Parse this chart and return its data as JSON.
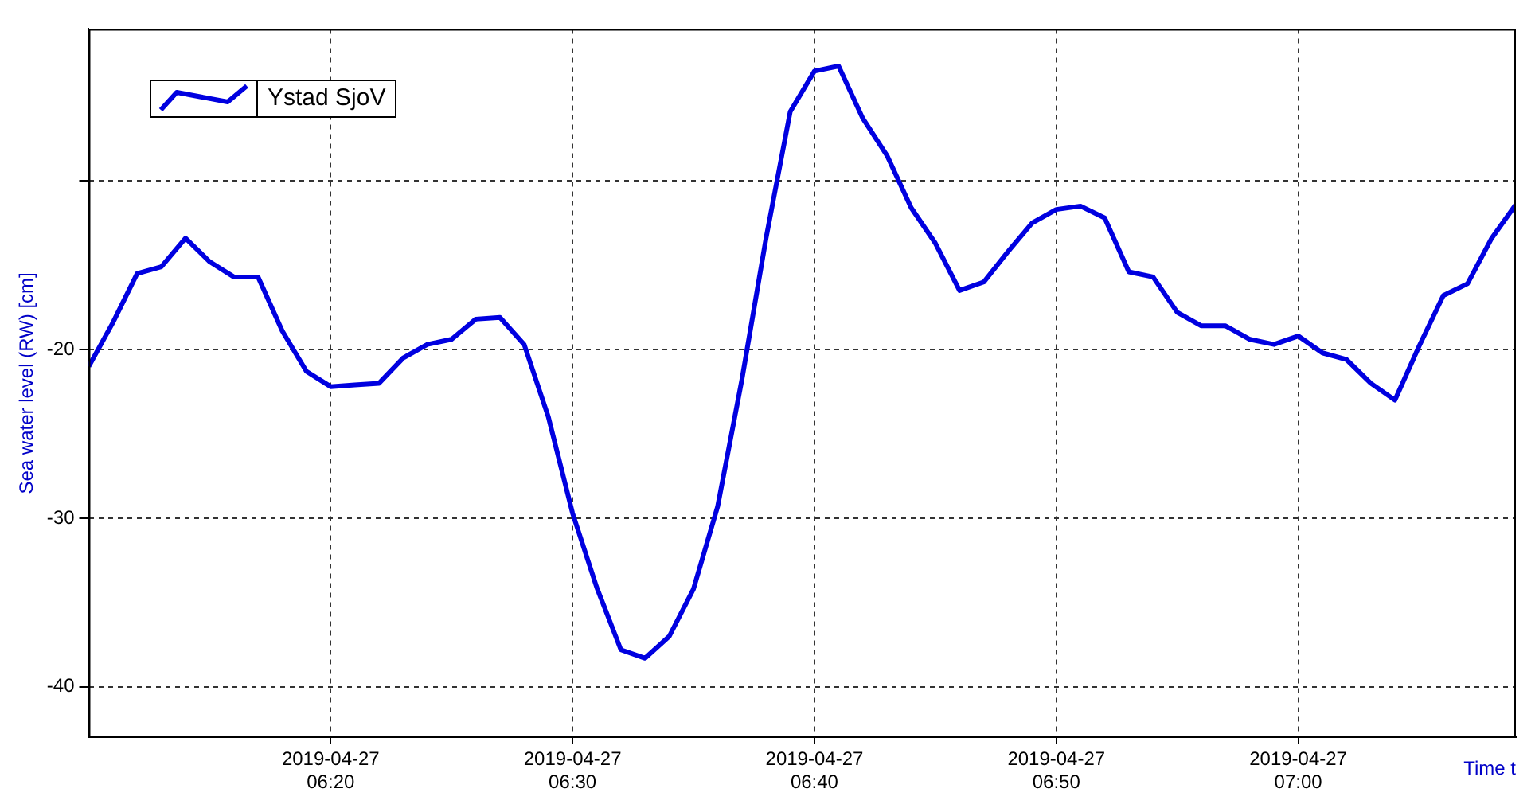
{
  "chart_data": {
    "type": "line",
    "ylabel": "Sea water level (RW) [cm]",
    "xlabel": "Time t",
    "x": [
      "2019-04-27T06:10",
      "2019-04-27T06:11",
      "2019-04-27T06:12",
      "2019-04-27T06:13",
      "2019-04-27T06:14",
      "2019-04-27T06:15",
      "2019-04-27T06:16",
      "2019-04-27T06:17",
      "2019-04-27T06:18",
      "2019-04-27T06:19",
      "2019-04-27T06:20",
      "2019-04-27T06:21",
      "2019-04-27T06:22",
      "2019-04-27T06:23",
      "2019-04-27T06:24",
      "2019-04-27T06:25",
      "2019-04-27T06:26",
      "2019-04-27T06:27",
      "2019-04-27T06:28",
      "2019-04-27T06:29",
      "2019-04-27T06:30",
      "2019-04-27T06:31",
      "2019-04-27T06:32",
      "2019-04-27T06:33",
      "2019-04-27T06:34",
      "2019-04-27T06:35",
      "2019-04-27T06:36",
      "2019-04-27T06:37",
      "2019-04-27T06:38",
      "2019-04-27T06:39",
      "2019-04-27T06:40",
      "2019-04-27T06:41",
      "2019-04-27T06:42",
      "2019-04-27T06:43",
      "2019-04-27T06:44",
      "2019-04-27T06:45",
      "2019-04-27T06:46",
      "2019-04-27T06:47",
      "2019-04-27T06:48",
      "2019-04-27T06:49",
      "2019-04-27T06:50",
      "2019-04-27T06:51",
      "2019-04-27T06:52",
      "2019-04-27T06:53",
      "2019-04-27T06:54",
      "2019-04-27T06:55",
      "2019-04-27T06:56",
      "2019-04-27T06:57",
      "2019-04-27T06:58",
      "2019-04-27T06:59",
      "2019-04-27T07:00",
      "2019-04-27T07:01",
      "2019-04-27T07:02",
      "2019-04-27T07:03",
      "2019-04-27T07:04",
      "2019-04-27T07:05",
      "2019-04-27T07:06",
      "2019-04-27T07:07",
      "2019-04-27T07:08",
      "2019-04-27T07:09"
    ],
    "series": [
      {
        "name": "Ystad SjoV",
        "color": "#0000e0",
        "values": [
          -21.0,
          -18.4,
          -15.5,
          -15.1,
          -13.4,
          -14.8,
          -15.7,
          -15.7,
          -18.9,
          -21.3,
          -22.2,
          -22.1,
          -22.0,
          -20.5,
          -19.7,
          -19.4,
          -18.2,
          -18.1,
          -19.7,
          -24.0,
          -29.7,
          -34.1,
          -37.8,
          -38.3,
          -37.0,
          -34.2,
          -29.3,
          -21.8,
          -13.4,
          -5.9,
          -3.5,
          -3.2,
          -6.3,
          -8.5,
          -11.6,
          -13.7,
          -16.5,
          -16.0,
          -14.2,
          -12.5,
          -11.7,
          -11.5,
          -12.2,
          -15.4,
          -15.7,
          -17.8,
          -18.6,
          -18.6,
          -19.4,
          -19.7,
          -19.2,
          -20.2,
          -20.6,
          -22.0,
          -23.0,
          -19.8,
          -16.8,
          -16.1,
          -13.4,
          -11.4
        ]
      }
    ],
    "xlim": [
      "2019-04-27T06:10",
      "2019-04-27T07:09"
    ],
    "xticks": [
      {
        "value": "2019-04-27T06:20",
        "label": "2019-04-27 06:20"
      },
      {
        "value": "2019-04-27T06:30",
        "label": "2019-04-27 06:30"
      },
      {
        "value": "2019-04-27T06:40",
        "label": "2019-04-27 06:40"
      },
      {
        "value": "2019-04-27T06:50",
        "label": "2019-04-27 06:50"
      },
      {
        "value": "2019-04-27T07:00",
        "label": "2019-04-27 07:00"
      }
    ],
    "ylim": [
      -43,
      -1
    ],
    "yticks": [
      {
        "value": -10,
        "label": null
      },
      -20,
      -30,
      -40
    ],
    "grid": true,
    "legend": "top left",
    "marker": "none",
    "line_style": "solid"
  }
}
